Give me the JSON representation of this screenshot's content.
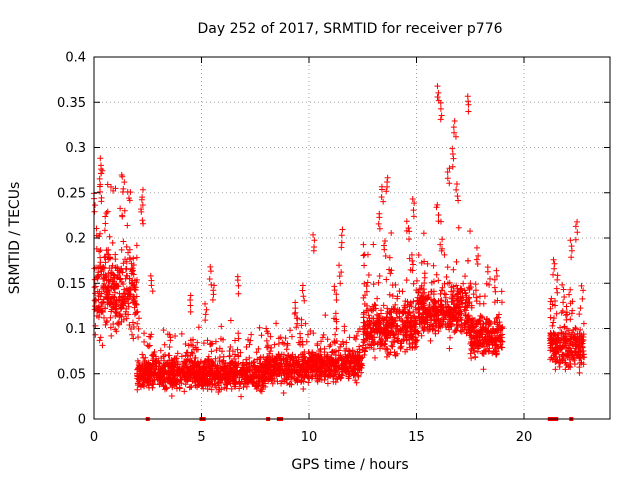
{
  "chart_data": {
    "type": "scatter",
    "title": "Day 252 of 2017, SRMTID for receiver p776",
    "xlabel": "GPS time / hours",
    "ylabel": "SRMTID / TECUs",
    "xlim": [
      0,
      24
    ],
    "ylim": [
      0,
      0.4
    ],
    "xticks": [
      0,
      5,
      10,
      15,
      20
    ],
    "xtick_labels": [
      "0",
      "5",
      "10",
      "15",
      "20"
    ],
    "yticks": [
      0,
      0.05,
      0.1,
      0.15,
      0.2,
      0.25,
      0.3,
      0.35,
      0.4
    ],
    "ytick_labels": [
      "0",
      "0.05",
      "0.1",
      "0.15",
      "0.2",
      "0.25",
      "0.3",
      "0.35",
      "0.4"
    ],
    "grid": true,
    "marker": "+",
    "color": "#ff0000",
    "series": [
      {
        "name": "SRMTID",
        "segments": [
          {
            "x_range": [
              0.0,
              2.0
            ],
            "level": 0.14,
            "spread": 0.08,
            "peaks": [
              0.29,
              0.28,
              0.27,
              0.26,
              0.25,
              0.23
            ]
          },
          {
            "x_range": [
              2.0,
              5.0
            ],
            "level": 0.05,
            "spread": 0.03,
            "peaks": [
              0.255,
              0.235,
              0.16,
              0.14,
              0.12
            ]
          },
          {
            "x_range": [
              5.0,
              8.0
            ],
            "level": 0.05,
            "spread": 0.03,
            "peaks": [
              0.17,
              0.16,
              0.15,
              0.13
            ]
          },
          {
            "x_range": [
              8.0,
              10.0
            ],
            "level": 0.055,
            "spread": 0.03,
            "peaks": [
              0.15,
              0.13,
              0.12,
              0.11
            ]
          },
          {
            "x_range": [
              10.0,
              12.5
            ],
            "level": 0.06,
            "spread": 0.03,
            "peaks": [
              0.21,
              0.205,
              0.17,
              0.15,
              0.12
            ]
          },
          {
            "x_range": [
              12.5,
              15.0
            ],
            "level": 0.1,
            "spread": 0.05,
            "peaks": [
              0.27,
              0.26,
              0.245,
              0.23,
              0.22,
              0.2
            ]
          },
          {
            "x_range": [
              15.0,
              17.5
            ],
            "level": 0.12,
            "spread": 0.05,
            "peaks": [
              0.37,
              0.36,
              0.35,
              0.33,
              0.3,
              0.28,
              0.26,
              0.24
            ]
          },
          {
            "x_range": [
              17.5,
              19.0
            ],
            "level": 0.09,
            "spread": 0.04,
            "peaks": [
              0.19,
              0.17,
              0.16,
              0.15
            ]
          },
          {
            "x_range": [
              21.2,
              22.8
            ],
            "level": 0.08,
            "spread": 0.04,
            "peaks": [
              0.22,
              0.2,
              0.18,
              0.16,
              0.15
            ]
          }
        ],
        "zero_points_x": [
          2.5,
          5.0,
          5.1,
          8.1,
          8.6,
          8.7,
          21.2,
          21.3,
          21.4,
          21.5,
          22.2
        ]
      }
    ]
  }
}
